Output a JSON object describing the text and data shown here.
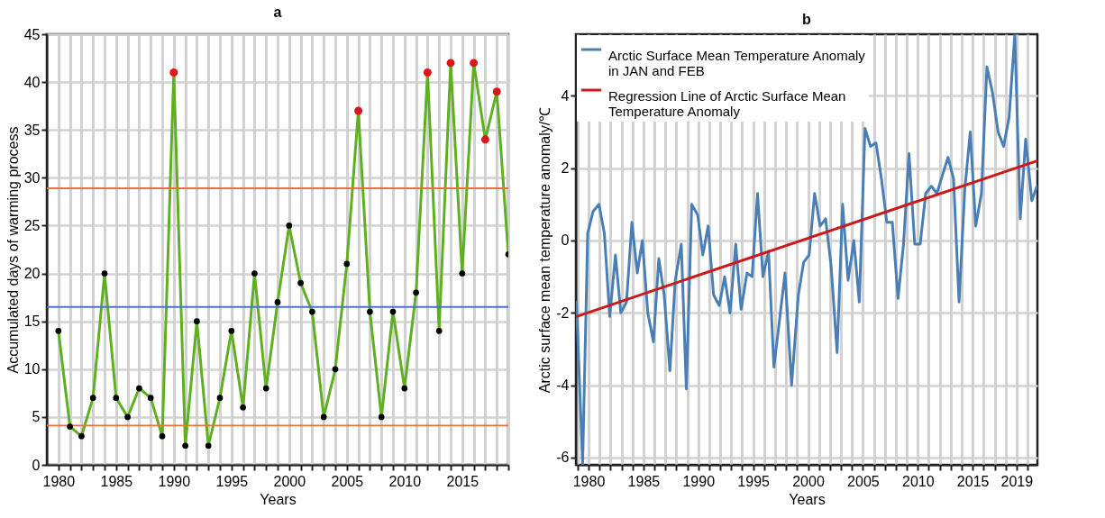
{
  "chart_data": [
    {
      "type": "line",
      "title": "a",
      "xlabel": "Years",
      "ylabel": "Accumulated days of warming process",
      "xlim": [
        1979,
        2019
      ],
      "ylim": [
        0,
        45
      ],
      "xticks": [
        1980,
        {
          "value": 1981,
          "label": null
        },
        {
          "value": 1982,
          "label": null
        },
        {
          "value": 1983,
          "label": null
        },
        {
          "value": 1984,
          "label": null
        },
        1985,
        {
          "value": 1986,
          "label": null
        },
        {
          "value": 1987,
          "label": null
        },
        {
          "value": 1988,
          "label": null
        },
        {
          "value": 1989,
          "label": null
        },
        1990,
        {
          "value": 1991,
          "label": null
        },
        {
          "value": 1992,
          "label": null
        },
        {
          "value": 1993,
          "label": null
        },
        {
          "value": 1994,
          "label": null
        },
        1995,
        {
          "value": 1996,
          "label": null
        },
        {
          "value": 1997,
          "label": null
        },
        {
          "value": 1998,
          "label": null
        },
        {
          "value": 1999,
          "label": null
        },
        2000,
        {
          "value": 2001,
          "label": null
        },
        {
          "value": 2002,
          "label": null
        },
        {
          "value": 2003,
          "label": null
        },
        {
          "value": 2004,
          "label": null
        },
        2005,
        {
          "value": 2006,
          "label": null
        },
        {
          "value": 2007,
          "label": null
        },
        {
          "value": 2008,
          "label": null
        },
        {
          "value": 2009,
          "label": null
        },
        2010,
        {
          "value": 2011,
          "label": null
        },
        {
          "value": 2012,
          "label": null
        },
        {
          "value": 2013,
          "label": null
        },
        {
          "value": 2014,
          "label": null
        },
        2015,
        {
          "value": 2016,
          "label": null
        },
        {
          "value": 2017,
          "label": null
        },
        {
          "value": 2018,
          "label": null
        },
        {
          "value": 2019,
          "label": null
        }
      ],
      "yticks": [
        0,
        5,
        10,
        15,
        20,
        25,
        30,
        35,
        40,
        45
      ],
      "grid": true,
      "series": [
        {
          "color": "#5fb021",
          "x": [
            1980,
            1981,
            1982,
            1983,
            1984,
            1985,
            1986,
            1987,
            1988,
            1989,
            1990,
            1991,
            1992,
            1993,
            1994,
            1995,
            1996,
            1997,
            1998,
            1999,
            2000,
            2001,
            2002,
            2003,
            2004,
            2005,
            2006,
            2007,
            2008,
            2009,
            2010,
            2011,
            2012,
            2013,
            2014,
            2015,
            2016,
            2017,
            2018,
            2019
          ],
          "values": [
            14,
            4,
            3,
            7,
            20,
            7,
            5,
            8,
            7,
            3,
            41,
            2,
            15,
            2,
            7,
            14,
            6,
            20,
            8,
            17,
            25,
            19,
            16,
            5,
            10,
            21,
            37,
            16,
            5,
            16,
            8,
            18,
            41,
            14,
            42,
            20,
            42,
            34,
            39,
            22
          ]
        },
        {
          "type": "scatter",
          "color": "#000000",
          "x": [
            1980,
            1981,
            1982,
            1983,
            1984,
            1985,
            1986,
            1987,
            1988,
            1989,
            1991,
            1992,
            1993,
            1994,
            1995,
            1996,
            1997,
            1998,
            1999,
            2000,
            2001,
            2002,
            2003,
            2004,
            2005,
            2007,
            2008,
            2009,
            2010,
            2011,
            2013,
            2015,
            2019
          ],
          "values": [
            14,
            4,
            3,
            7,
            20,
            7,
            5,
            8,
            7,
            3,
            2,
            15,
            2,
            7,
            14,
            6,
            20,
            8,
            17,
            25,
            19,
            16,
            5,
            10,
            21,
            16,
            5,
            16,
            8,
            18,
            14,
            20,
            22
          ]
        },
        {
          "type": "scatter",
          "color": "#e0151b",
          "x": [
            1990,
            2006,
            2012,
            2014,
            2016,
            2017,
            2018
          ],
          "values": [
            41,
            37,
            41,
            42,
            42,
            34,
            39
          ]
        }
      ],
      "ref_lines": [
        {
          "axis": "y",
          "value": 28.9,
          "color": "#e8713c"
        },
        {
          "axis": "y",
          "value": 4.1,
          "color": "#e8713c"
        },
        {
          "axis": "y",
          "value": 16.5,
          "color": "#4a72d0"
        }
      ]
    },
    {
      "type": "line",
      "title": "b",
      "xlabel": "Years",
      "ylabel": "Arctic surface mean temperature anomaly/℃",
      "xlim": [
        1978.85,
        2020.9
      ],
      "ylim": [
        -6.2,
        5.7
      ],
      "xticks": [
        {
          "value": 1979,
          "label": null
        },
        1980,
        {
          "value": 1981,
          "label": null
        },
        {
          "value": 1982,
          "label": null
        },
        {
          "value": 1983,
          "label": null
        },
        {
          "value": 1984,
          "label": null
        },
        1985,
        {
          "value": 1986,
          "label": null
        },
        {
          "value": 1987,
          "label": null
        },
        {
          "value": 1988,
          "label": null
        },
        {
          "value": 1989,
          "label": null
        },
        1990,
        {
          "value": 1991,
          "label": null
        },
        {
          "value": 1992,
          "label": null
        },
        {
          "value": 1993,
          "label": null
        },
        {
          "value": 1994,
          "label": null
        },
        1995,
        {
          "value": 1996,
          "label": null
        },
        {
          "value": 1997,
          "label": null
        },
        {
          "value": 1998,
          "label": null
        },
        {
          "value": 1999,
          "label": null
        },
        2000,
        {
          "value": 2001,
          "label": null
        },
        {
          "value": 2002,
          "label": null
        },
        {
          "value": 2003,
          "label": null
        },
        {
          "value": 2004,
          "label": null
        },
        2005,
        {
          "value": 2006,
          "label": null
        },
        {
          "value": 2007,
          "label": null
        },
        {
          "value": 2008,
          "label": null
        },
        {
          "value": 2009,
          "label": null
        },
        2010,
        {
          "value": 2011,
          "label": null
        },
        {
          "value": 2012,
          "label": null
        },
        {
          "value": 2013,
          "label": null
        },
        {
          "value": 2014,
          "label": null
        },
        2015,
        {
          "value": 2016,
          "label": null
        },
        {
          "value": 2017,
          "label": null
        },
        {
          "value": 2018,
          "label": null
        },
        2019,
        {
          "value": 2020,
          "label": null
        }
      ],
      "yticks": [
        -6,
        -4,
        -2,
        0,
        2,
        4
      ],
      "grid": true,
      "legend": "top left",
      "series": [
        {
          "name": "Arctic Surface Mean Temperature Anomaly in JAN and FEB",
          "color": "#4a7fb5",
          "x": [
            1978.9,
            1979.46,
            1979.92,
            1980.41,
            1980.95,
            1981.44,
            1981.93,
            1982.45,
            1982.94,
            1983.46,
            1983.95,
            1984.44,
            1984.9,
            1985.4,
            1985.91,
            1986.4,
            1986.89,
            1987.41,
            1987.9,
            1988.45,
            1988.91,
            1989.4,
            1989.95,
            1990.41,
            1990.9,
            1991.39,
            1991.91,
            1992.4,
            1992.89,
            1993.41,
            1993.9,
            1994.44,
            1994.9,
            1995.4,
            1995.89,
            1996.4,
            1996.89,
            1997.4,
            1997.9,
            1998.5,
            1999.12,
            1999.6,
            2000.1,
            2000.6,
            2001.1,
            2001.6,
            2002.1,
            2002.65,
            2003.15,
            2003.65,
            2004.17,
            2004.67,
            2005.19,
            2005.69,
            2006.19,
            2006.69,
            2007.18,
            2007.68,
            2008.2,
            2008.7,
            2009.2,
            2009.72,
            2010.22,
            2010.72,
            2011.24,
            2011.74,
            2012.24,
            2012.76,
            2013.26,
            2013.76,
            2014.28,
            2014.78,
            2015.28,
            2015.8,
            2016.3,
            2016.8,
            2017.32,
            2017.82,
            2018.32,
            2018.84,
            2019.34,
            2019.83,
            2020.39,
            2020.86
          ],
          "values": [
            -1.7,
            -6.2,
            0.2,
            0.8,
            1.0,
            0.2,
            -2.1,
            -0.4,
            -2.0,
            -1.7,
            0.5,
            -0.9,
            0.0,
            -2.0,
            -2.8,
            -0.5,
            -1.5,
            -3.6,
            -1.1,
            -0.1,
            -4.1,
            1.0,
            0.7,
            -0.4,
            0.4,
            -1.5,
            -1.8,
            -1.0,
            -2.0,
            -0.1,
            -1.9,
            -0.9,
            -1.0,
            1.3,
            -1.0,
            -0.3,
            -3.5,
            -2.2,
            -0.9,
            -4.0,
            -1.5,
            -0.6,
            -0.4,
            1.3,
            0.4,
            0.6,
            -0.7,
            -3.1,
            1.0,
            -1.1,
            0.0,
            -1.7,
            3.1,
            2.6,
            2.7,
            1.7,
            0.5,
            0.5,
            -1.6,
            -0.1,
            2.4,
            -0.1,
            -0.1,
            1.3,
            1.5,
            1.3,
            1.8,
            2.3,
            1.7,
            -1.7,
            1.4,
            3.0,
            0.4,
            1.3,
            4.8,
            4.1,
            3.0,
            2.6,
            3.4,
            5.7,
            0.6,
            2.8,
            1.1,
            1.5
          ]
        },
        {
          "name": "Regression Line of Arctic Surface Mean Temperature Anomaly",
          "color": "#cc1a1a",
          "x": [
            1978.9,
            2020.86
          ],
          "values": [
            -2.1,
            2.2
          ]
        }
      ]
    }
  ]
}
